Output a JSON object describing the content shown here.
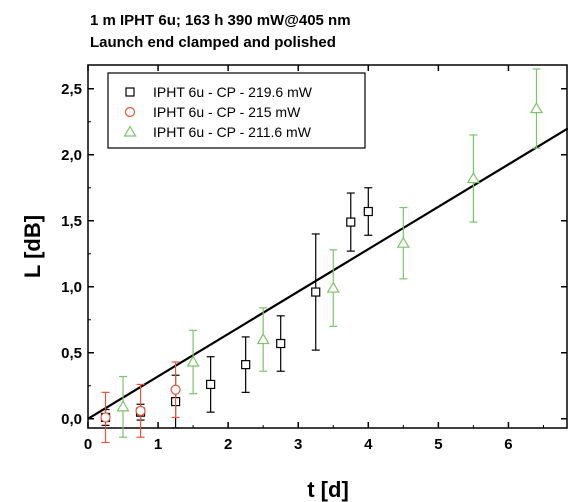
{
  "chart_data": {
    "type": "scatter",
    "title": "1 m IPHT 6u; 163 h 390 mW@405 nm",
    "subtitle": "Launch end clamped and polished",
    "xlabel": "t [d]",
    "ylabel": "L [dB]",
    "xlim": [
      0,
      6.85
    ],
    "ylim": [
      -0.07,
      2.68
    ],
    "x_ticks": [
      0,
      1,
      2,
      3,
      4,
      5,
      6
    ],
    "x_tick_labels": [
      "0",
      "1",
      "2",
      "3",
      "4",
      "5",
      "6"
    ],
    "y_ticks": [
      0.0,
      0.5,
      1.0,
      1.5,
      2.0,
      2.5
    ],
    "y_tick_labels": [
      "0,0",
      "0,5",
      "1,0",
      "1,5",
      "2,0",
      "2,5"
    ],
    "legend_position": "top-left",
    "grid": false,
    "series": [
      {
        "name": "IPHT 6u - CP - 219.6 mW",
        "marker": "square",
        "color": "#000000",
        "points": [
          {
            "x": 0.25,
            "y": 0.01,
            "err": 0.06
          },
          {
            "x": 0.75,
            "y": 0.05,
            "err": 0.06
          },
          {
            "x": 1.25,
            "y": 0.13,
            "err": 0.2
          },
          {
            "x": 1.75,
            "y": 0.26,
            "err": 0.21
          },
          {
            "x": 2.25,
            "y": 0.41,
            "err": 0.21
          },
          {
            "x": 2.75,
            "y": 0.57,
            "err": 0.21
          },
          {
            "x": 3.25,
            "y": 0.96,
            "err": 0.44
          },
          {
            "x": 3.75,
            "y": 1.49,
            "err": 0.22
          },
          {
            "x": 4.0,
            "y": 1.57,
            "err": 0.18
          }
        ]
      },
      {
        "name": "IPHT 6u - CP - 215 mW",
        "marker": "circle",
        "color": "#e8553a",
        "points": [
          {
            "x": 0.25,
            "y": 0.01,
            "err": 0.19
          },
          {
            "x": 0.75,
            "y": 0.06,
            "err": 0.2
          },
          {
            "x": 1.25,
            "y": 0.22,
            "err": 0.21
          }
        ]
      },
      {
        "name": "IPHT 6u - CP - 211.6 mW",
        "marker": "triangle",
        "color": "#7cc46a",
        "points": [
          {
            "x": 0.5,
            "y": 0.09,
            "err": 0.23
          },
          {
            "x": 1.5,
            "y": 0.43,
            "err": 0.24
          },
          {
            "x": 2.5,
            "y": 0.6,
            "err": 0.24
          },
          {
            "x": 3.5,
            "y": 0.99,
            "err": 0.29
          },
          {
            "x": 4.5,
            "y": 1.33,
            "err": 0.27
          },
          {
            "x": 5.5,
            "y": 1.82,
            "err": 0.33
          },
          {
            "x": 6.4,
            "y": 2.35,
            "err": 0.3
          }
        ]
      }
    ],
    "fit_line": {
      "color": "#000000",
      "x": [
        0,
        6.85
      ],
      "y": [
        0,
        2.2
      ]
    }
  }
}
